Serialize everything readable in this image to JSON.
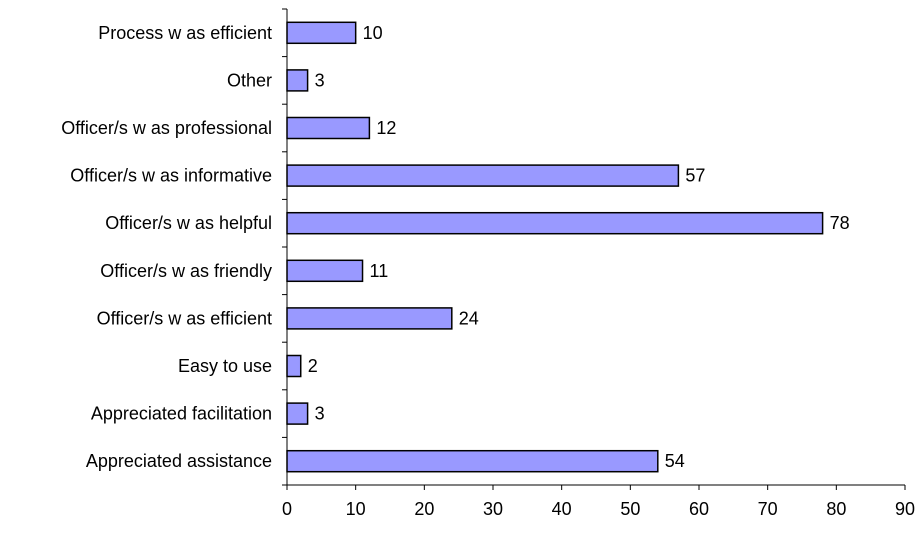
{
  "chart_data": {
    "type": "bar",
    "orientation": "horizontal",
    "categories": [
      "Process w as efficient",
      "Other",
      "Officer/s w as professional",
      "Officer/s w as informative",
      "Officer/s w as helpful",
      "Officer/s w as friendly",
      "Officer/s w as efficient",
      "Easy to use",
      "Appreciated facilitation",
      "Appreciated assistance"
    ],
    "values": [
      10,
      3,
      12,
      57,
      78,
      11,
      24,
      2,
      3,
      54
    ],
    "data_labels": [
      "10",
      "3",
      "12",
      "57",
      "78",
      "11",
      "24",
      "2",
      "3",
      "54"
    ],
    "xlim": [
      0,
      90
    ],
    "x_ticks": [
      0,
      10,
      20,
      30,
      40,
      50,
      60,
      70,
      80,
      90
    ],
    "x_tick_labels": [
      "0",
      "10",
      "20",
      "30",
      "40",
      "50",
      "60",
      "70",
      "80",
      "90"
    ],
    "grid": false,
    "legend": "none",
    "bar_color": "#9999ff",
    "bar_edge_color": "#000000",
    "title": "",
    "xlabel": "",
    "ylabel": ""
  }
}
